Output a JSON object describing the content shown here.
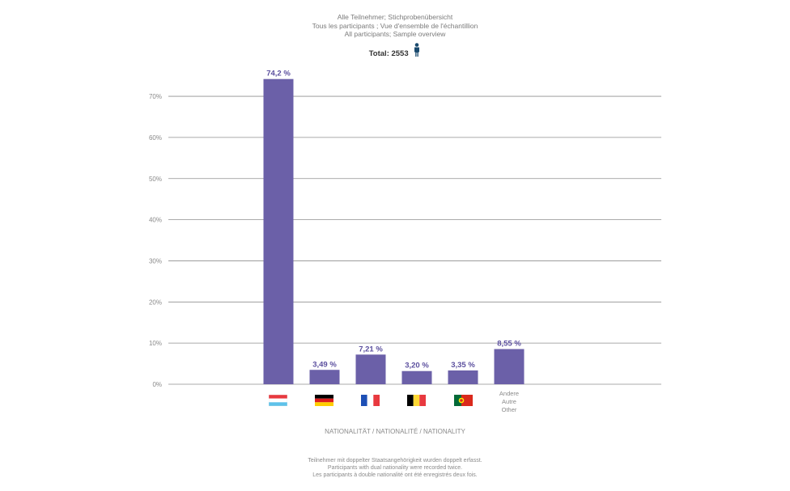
{
  "header": {
    "title_de": "Alle Teilnehmer; Stichprobenübersicht",
    "title_fr": "Tous les participants ; Vue d'ensemble de l'échantillion",
    "title_en": "All participants; Sample overview",
    "total_text": "Total: 2553",
    "person_icon": "person-icon"
  },
  "colors": {
    "bar": "#6b60a8",
    "grid": "#8f8f8f",
    "label": "#5b4f9e",
    "icon": "#1a4a6e"
  },
  "chart_data": {
    "type": "bar",
    "categories": [
      "Luxembourg",
      "Germany",
      "France",
      "Belgium",
      "Portugal",
      "Andere Autre Other"
    ],
    "values": [
      74.2,
      3.49,
      7.21,
      3.2,
      3.35,
      8.55
    ],
    "value_labels": [
      "74,2 %",
      "3,49 %",
      "7,21 %",
      "3,20 %",
      "3,35 %",
      "8,55 %"
    ],
    "category_icons": [
      "flag-luxembourg-icon",
      "flag-germany-icon",
      "flag-france-icon",
      "flag-belgium-icon",
      "flag-portugal-icon",
      null
    ],
    "yticks": [
      0,
      10,
      20,
      30,
      40,
      50,
      60,
      70
    ],
    "ytick_labels": [
      "0%",
      "10%",
      "20%",
      "30%",
      "40%",
      "50%",
      "60%",
      "70%"
    ],
    "ylim": [
      0,
      75
    ],
    "xlabel": "NATIONALITÄT / NATIONALITÉ / NATIONALITY",
    "ylabel": "",
    "grid": true
  },
  "other_label": [
    "Andere",
    "Autre",
    "Other"
  ],
  "footnote": {
    "line1": "Teilnehmer mit doppelter Staatsangehörigkeit wurden doppelt erfasst.",
    "line2": "Participants with dual nationality were recorded twice.",
    "line3": "Les participants à double nationalité ont été enregistrés deux fois."
  }
}
